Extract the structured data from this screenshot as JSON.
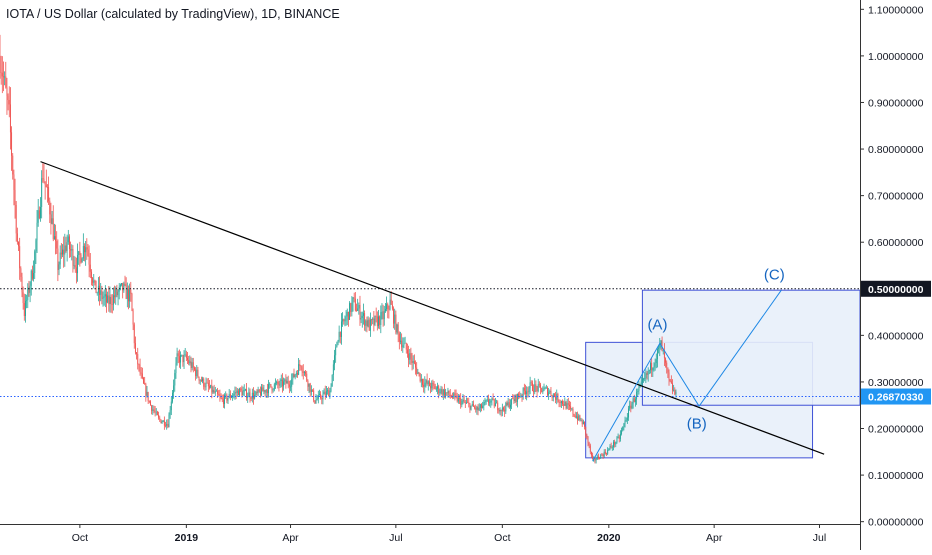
{
  "chart_data": {
    "type": "candlestick",
    "title": "IOTA / US Dollar (calculated by TradingView), 1D, BINANCE",
    "xlabel": "",
    "ylabel": "",
    "x_tick_labels": [
      "Oct",
      "2019",
      "Apr",
      "Jul",
      "Oct",
      "2020",
      "Apr",
      "Jul"
    ],
    "x_tick_dates": [
      "2018-10-01",
      "2019-01-01",
      "2019-04-01",
      "2019-07-01",
      "2019-10-01",
      "2020-01-01",
      "2020-04-01",
      "2020-07-01"
    ],
    "y_tick_labels": [
      "0.00000000",
      "0.10000000",
      "0.20000000",
      "0.30000000",
      "0.40000000",
      "0.50000000",
      "0.60000000",
      "0.70000000",
      "0.80000000",
      "0.90000000",
      "1.00000000",
      "1.10000000"
    ],
    "y_ticks": [
      0.0,
      0.1,
      0.2,
      0.3,
      0.4,
      0.5,
      0.6,
      0.7,
      0.8,
      0.9,
      1.0,
      1.1
    ],
    "ylim": [
      -0.005,
      1.12
    ],
    "xlim": [
      "2018-07-24",
      "2020-08-05"
    ],
    "up_color": "#26a69a",
    "down_color": "#ef5350",
    "price_path": [
      [
        "2018-07-24",
        1.0
      ],
      [
        "2018-08-01",
        0.87
      ],
      [
        "2018-08-08",
        0.6
      ],
      [
        "2018-08-14",
        0.45
      ],
      [
        "2018-08-22",
        0.55
      ],
      [
        "2018-08-30",
        0.75
      ],
      [
        "2018-09-06",
        0.66
      ],
      [
        "2018-09-12",
        0.55
      ],
      [
        "2018-09-20",
        0.6
      ],
      [
        "2018-09-28",
        0.55
      ],
      [
        "2018-10-06",
        0.6
      ],
      [
        "2018-10-14",
        0.5
      ],
      [
        "2018-10-25",
        0.47
      ],
      [
        "2018-11-07",
        0.5
      ],
      [
        "2018-11-14",
        0.48
      ],
      [
        "2018-11-18",
        0.36
      ],
      [
        "2018-11-24",
        0.3
      ],
      [
        "2018-12-01",
        0.25
      ],
      [
        "2018-12-08",
        0.22
      ],
      [
        "2018-12-16",
        0.21
      ],
      [
        "2018-12-24",
        0.35
      ],
      [
        "2019-01-01",
        0.35
      ],
      [
        "2019-01-15",
        0.3
      ],
      [
        "2019-02-01",
        0.26
      ],
      [
        "2019-02-15",
        0.28
      ],
      [
        "2019-03-01",
        0.27
      ],
      [
        "2019-03-15",
        0.29
      ],
      [
        "2019-04-01",
        0.3
      ],
      [
        "2019-04-10",
        0.34
      ],
      [
        "2019-04-22",
        0.26
      ],
      [
        "2019-05-05",
        0.28
      ],
      [
        "2019-05-12",
        0.4
      ],
      [
        "2019-05-25",
        0.47
      ],
      [
        "2019-06-08",
        0.42
      ],
      [
        "2019-06-20",
        0.44
      ],
      [
        "2019-06-26",
        0.47
      ],
      [
        "2019-07-03",
        0.4
      ],
      [
        "2019-07-12",
        0.36
      ],
      [
        "2019-07-24",
        0.3
      ],
      [
        "2019-08-10",
        0.28
      ],
      [
        "2019-08-25",
        0.26
      ],
      [
        "2019-09-10",
        0.24
      ],
      [
        "2019-09-20",
        0.26
      ],
      [
        "2019-10-01",
        0.24
      ],
      [
        "2019-10-10",
        0.26
      ],
      [
        "2019-10-25",
        0.29
      ],
      [
        "2019-11-10",
        0.28
      ],
      [
        "2019-11-25",
        0.25
      ],
      [
        "2019-12-10",
        0.21
      ],
      [
        "2019-12-18",
        0.13
      ],
      [
        "2019-12-30",
        0.15
      ],
      [
        "2020-01-10",
        0.18
      ],
      [
        "2020-01-20",
        0.25
      ],
      [
        "2020-01-31",
        0.3
      ],
      [
        "2020-02-10",
        0.35
      ],
      [
        "2020-02-15",
        0.38
      ],
      [
        "2020-02-22",
        0.3
      ],
      [
        "2020-02-28",
        0.27
      ]
    ],
    "horizontal_lines": [
      {
        "value": 0.5,
        "label": "0.50000000",
        "style": "dotted",
        "color": "#131722",
        "label_bg": "#131722"
      },
      {
        "value": 0.2687033,
        "label": "0.26870330",
        "style": "dotted",
        "color": "#2962ff",
        "label_bg": "#2196f3"
      }
    ],
    "trendline": {
      "start": [
        "2018-08-28",
        0.773
      ],
      "end": [
        "2020-07-05",
        0.145
      ],
      "color": "#000000"
    },
    "boxes": [
      {
        "from": [
          "2019-12-12",
          0.385
        ],
        "to": [
          "2020-06-25",
          0.137
        ],
        "color": "#3f51d6",
        "fill": "#e8effa"
      },
      {
        "from": [
          "2020-01-30",
          0.497
        ],
        "to": [
          "2020-08-05",
          0.25
        ],
        "color": "#3f51d6",
        "fill": "#e8effa"
      }
    ],
    "wave_path": [
      [
        "2019-12-18",
        0.13
      ],
      [
        "2020-02-14",
        0.383
      ],
      [
        "2020-03-19",
        0.248
      ],
      [
        "2020-05-29",
        0.497
      ]
    ],
    "wave_color": "#1e88e5",
    "annotations": [
      {
        "text": "(A)",
        "at": [
          "2020-02-12",
          0.413
        ]
      },
      {
        "text": "(B)",
        "at": [
          "2020-03-17",
          0.2
        ]
      },
      {
        "text": "(C)",
        "at": [
          "2020-05-23",
          0.52
        ]
      }
    ],
    "annotation_color": "#1565c0",
    "grid": false
  }
}
